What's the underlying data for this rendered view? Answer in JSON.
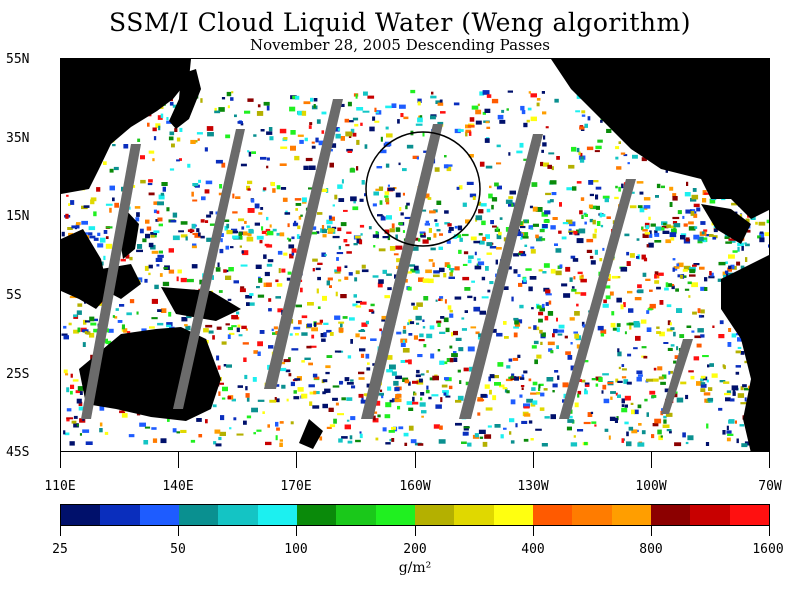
{
  "title": "SSM/I Cloud Liquid Water (Weng algorithm)",
  "subtitle": "November 28, 2005  Descending Passes",
  "map": {
    "lat_labels": [
      "55N",
      "35N",
      "15N",
      "5S",
      "25S",
      "45S"
    ],
    "lon_labels": [
      "110E",
      "140E",
      "170E",
      "160W",
      "130W",
      "100W",
      "70W"
    ],
    "land_color": "#000000",
    "gap_color": "#6b6b6b",
    "background_color": "#ffffff",
    "highlight": "circle"
  },
  "colorbar": {
    "colors": [
      "#00106b",
      "#0a2ebd",
      "#1e5cff",
      "#0a9090",
      "#14c4c4",
      "#1cf0f0",
      "#0a8a0a",
      "#1ac81a",
      "#20f020",
      "#b4b000",
      "#e0d800",
      "#ffff10",
      "#ff5a00",
      "#ff7c00",
      "#ff9e00",
      "#8c0000",
      "#c80000",
      "#ff1010"
    ],
    "tick_labels": [
      "25",
      "50",
      "100",
      "200",
      "400",
      "800",
      "1600"
    ],
    "unit": "g/m²"
  }
}
